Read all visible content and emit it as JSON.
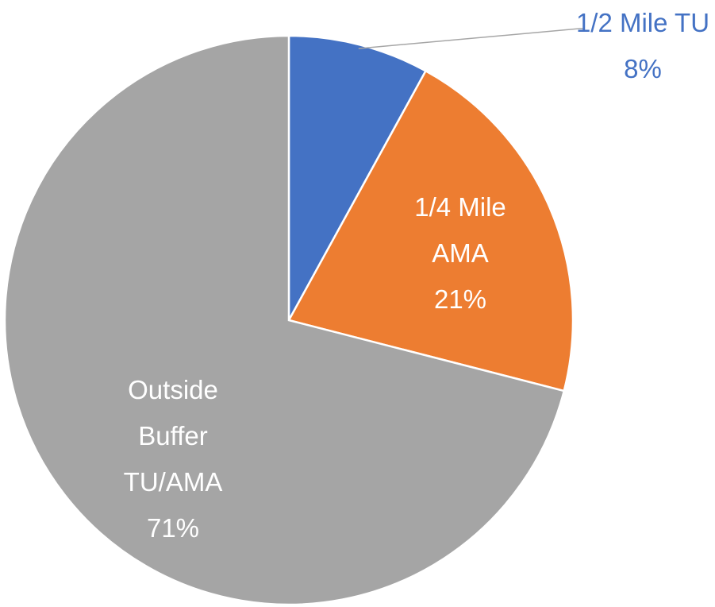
{
  "chart_data": {
    "type": "pie",
    "categories": [
      "1/2 Mile TU",
      "1/4 Mile AMA",
      "Outside Buffer TU/AMA"
    ],
    "values": [
      8,
      21,
      71
    ],
    "value_labels": [
      "8%",
      "21%",
      "71%"
    ],
    "colors": [
      "#4472c4",
      "#ed7d31",
      "#a5a5a5"
    ]
  }
}
